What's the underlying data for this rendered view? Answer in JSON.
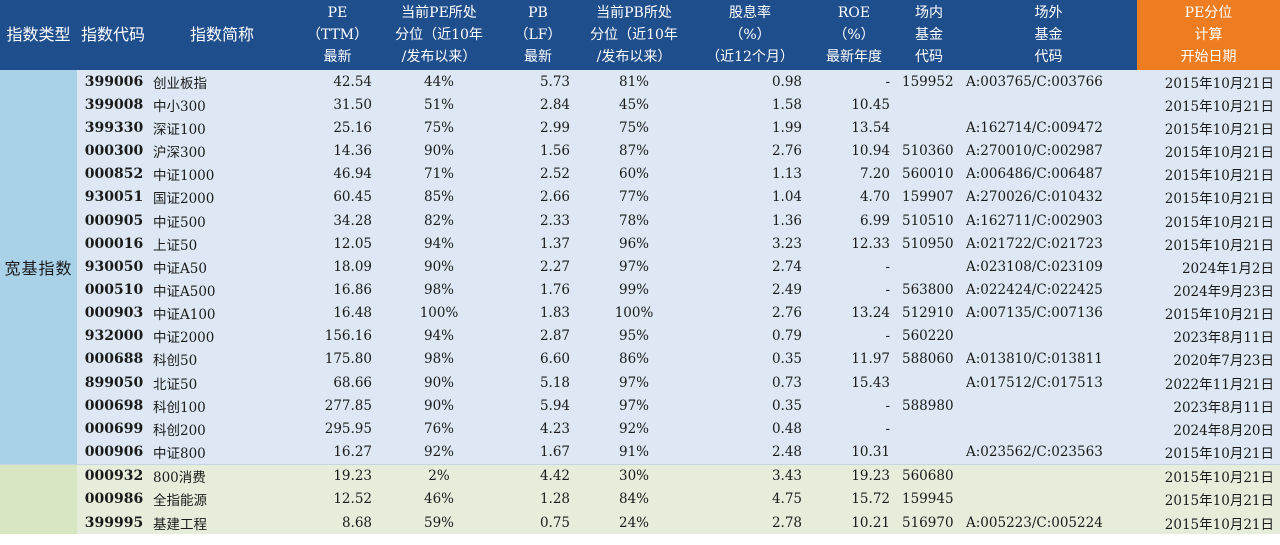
{
  "headers": [
    [
      "指数类型"
    ],
    [
      "指数代码"
    ],
    [
      "指数简称"
    ],
    [
      "PE",
      "（TTM）",
      "最新"
    ],
    [
      "当前PE所处",
      "分位（近10年",
      "/发布以来）"
    ],
    [
      "PB",
      "（LF）",
      "最新"
    ],
    [
      "当前PB所处",
      "分位（近10年",
      "/发布以来）"
    ],
    [
      "股息率",
      "（%）",
      "（近12个月）"
    ],
    [
      "ROE",
      "（%）",
      "最新年度"
    ],
    [
      "场内",
      "基金",
      "代码"
    ],
    [
      "场外",
      "基金",
      "代码"
    ],
    [
      "PE分位",
      "计算",
      "开始日期"
    ]
  ],
  "groups": [
    {
      "type": "宽基指数",
      "theme": "blue",
      "rows": [
        {
          "code": "399006",
          "name": "创业板指",
          "pe": "42.54",
          "pe_pct": "44%",
          "pb": "5.73",
          "pb_pct": "81%",
          "div": "0.98",
          "roe": "-",
          "etf": "159952",
          "otc": "A:003765/C:003766",
          "date": "2015年10月21日"
        },
        {
          "code": "399008",
          "name": "中小300",
          "pe": "31.50",
          "pe_pct": "51%",
          "pb": "2.84",
          "pb_pct": "45%",
          "div": "1.58",
          "roe": "10.45",
          "etf": "",
          "otc": "",
          "date": "2015年10月21日"
        },
        {
          "code": "399330",
          "name": "深证100",
          "pe": "25.16",
          "pe_pct": "75%",
          "pb": "2.99",
          "pb_pct": "75%",
          "div": "1.99",
          "roe": "13.54",
          "etf": "",
          "otc": "A:162714/C:009472",
          "date": "2015年10月21日"
        },
        {
          "code": "000300",
          "name": "沪深300",
          "pe": "14.36",
          "pe_pct": "90%",
          "pb": "1.56",
          "pb_pct": "87%",
          "div": "2.76",
          "roe": "10.94",
          "etf": "510360",
          "otc": "A:270010/C:002987",
          "date": "2015年10月21日"
        },
        {
          "code": "000852",
          "name": "中证1000",
          "pe": "46.94",
          "pe_pct": "71%",
          "pb": "2.52",
          "pb_pct": "60%",
          "div": "1.13",
          "roe": "7.20",
          "etf": "560010",
          "otc": "A:006486/C:006487",
          "date": "2015年10月21日"
        },
        {
          "code": "930051",
          "name": "国证2000",
          "pe": "60.45",
          "pe_pct": "85%",
          "pb": "2.66",
          "pb_pct": "77%",
          "div": "1.04",
          "roe": "4.70",
          "etf": "159907",
          "otc": "A:270026/C:010432",
          "date": "2015年10月21日"
        },
        {
          "code": "000905",
          "name": "中证500",
          "pe": "34.28",
          "pe_pct": "82%",
          "pb": "2.33",
          "pb_pct": "78%",
          "div": "1.36",
          "roe": "6.99",
          "etf": "510510",
          "otc": "A:162711/C:002903",
          "date": "2015年10月21日"
        },
        {
          "code": "000016",
          "name": "上证50",
          "pe": "12.05",
          "pe_pct": "94%",
          "pb": "1.37",
          "pb_pct": "96%",
          "div": "3.23",
          "roe": "12.33",
          "etf": "510950",
          "otc": "A:021722/C:021723",
          "date": "2015年10月21日"
        },
        {
          "code": "930050",
          "name": "中证A50",
          "pe": "18.09",
          "pe_pct": "90%",
          "pb": "2.27",
          "pb_pct": "97%",
          "div": "2.74",
          "roe": "-",
          "etf": "",
          "otc": "A:023108/C:023109",
          "date": "2024年1月2日"
        },
        {
          "code": "000510",
          "name": "中证A500",
          "pe": "16.86",
          "pe_pct": "98%",
          "pb": "1.76",
          "pb_pct": "99%",
          "div": "2.49",
          "roe": "-",
          "etf": "563800",
          "otc": "A:022424/C:022425",
          "date": "2024年9月23日"
        },
        {
          "code": "000903",
          "name": "中证A100",
          "pe": "16.48",
          "pe_pct": "100%",
          "pb": "1.83",
          "pb_pct": "100%",
          "div": "2.76",
          "roe": "13.24",
          "etf": "512910",
          "otc": "A:007135/C:007136",
          "date": "2015年10月21日"
        },
        {
          "code": "932000",
          "name": "中证2000",
          "pe": "156.16",
          "pe_pct": "94%",
          "pb": "2.87",
          "pb_pct": "95%",
          "div": "0.79",
          "roe": "-",
          "etf": "560220",
          "otc": "",
          "date": "2023年8月11日"
        },
        {
          "code": "000688",
          "name": "科创50",
          "pe": "175.80",
          "pe_pct": "98%",
          "pb": "6.60",
          "pb_pct": "86%",
          "div": "0.35",
          "roe": "11.97",
          "etf": "588060",
          "otc": "A:013810/C:013811",
          "date": "2020年7月23日"
        },
        {
          "code": "899050",
          "name": "北证50",
          "pe": "68.66",
          "pe_pct": "90%",
          "pb": "5.18",
          "pb_pct": "97%",
          "div": "0.73",
          "roe": "15.43",
          "etf": "",
          "otc": "A:017512/C:017513",
          "date": "2022年11月21日"
        },
        {
          "code": "000698",
          "name": "科创100",
          "pe": "277.85",
          "pe_pct": "90%",
          "pb": "5.94",
          "pb_pct": "97%",
          "div": "0.35",
          "roe": "-",
          "etf": "588980",
          "otc": "",
          "date": "2023年8月11日"
        },
        {
          "code": "000699",
          "name": "科创200",
          "pe": "295.95",
          "pe_pct": "76%",
          "pb": "4.23",
          "pb_pct": "92%",
          "div": "0.48",
          "roe": "-",
          "etf": "",
          "otc": "",
          "date": "2024年8月20日"
        },
        {
          "code": "000906",
          "name": "中证800",
          "pe": "16.27",
          "pe_pct": "92%",
          "pb": "1.67",
          "pb_pct": "91%",
          "div": "2.48",
          "roe": "10.31",
          "etf": "",
          "otc": "A:023562/C:023563",
          "date": "2015年10月21日"
        }
      ]
    },
    {
      "type": "",
      "theme": "green",
      "rows": [
        {
          "code": "000932",
          "name": "800消费",
          "pe": "19.23",
          "pe_pct": "2%",
          "pb": "4.42",
          "pb_pct": "30%",
          "div": "3.43",
          "roe": "19.23",
          "etf": "560680",
          "otc": "",
          "date": "2015年10月21日"
        },
        {
          "code": "000986",
          "name": "全指能源",
          "pe": "12.52",
          "pe_pct": "46%",
          "pb": "1.28",
          "pb_pct": "84%",
          "div": "4.75",
          "roe": "15.72",
          "etf": "159945",
          "otc": "",
          "date": "2015年10月21日"
        },
        {
          "code": "399995",
          "name": "基建工程",
          "pe": "8.68",
          "pe_pct": "59%",
          "pb": "0.75",
          "pb_pct": "24%",
          "div": "2.78",
          "roe": "10.21",
          "etf": "516970",
          "otc": "A:005223/C:005224",
          "date": "2015年10月21日"
        }
      ]
    }
  ]
}
